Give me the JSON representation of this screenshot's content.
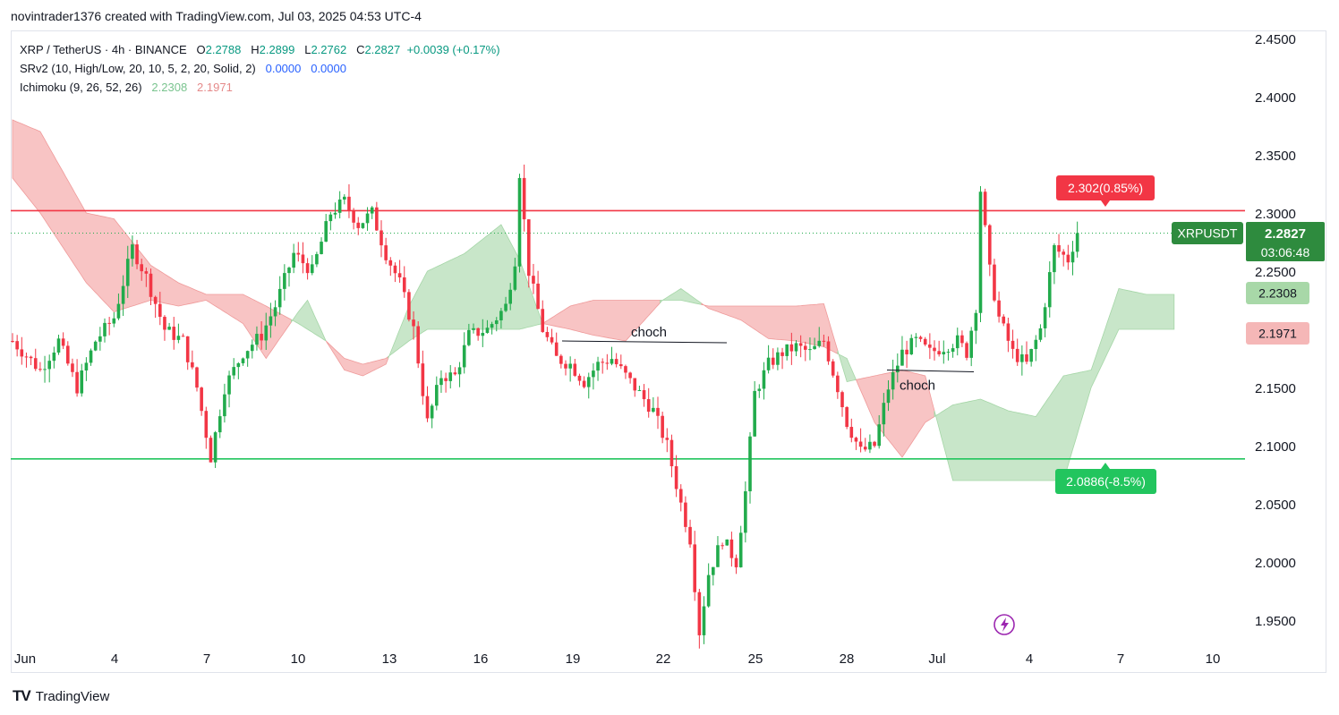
{
  "header": {
    "credit": "novintrader1376 created with TradingView.com, Jul 03, 2025 04:53 UTC-4"
  },
  "legend": {
    "symbol": "XRP / TetherUS · 4h · BINANCE",
    "o_label": "O",
    "o": "2.2788",
    "h_label": "H",
    "h": "2.2899",
    "l_label": "L",
    "l": "2.2762",
    "c_label": "C",
    "c": "2.2827",
    "change": "+0.0039 (+0.17%)",
    "srv2_label": "SRv2 (10, High/Low, 20, 10, 5, 2, 20, Solid, 2)",
    "srv2_v1": "0.0000",
    "srv2_v2": "0.0000",
    "ichimoku_label": "Ichimoku (9, 26, 52, 26)",
    "ichimoku_a": "2.2308",
    "ichimoku_b": "2.1971"
  },
  "colors": {
    "up": "#089981",
    "candle_up": "#22ab4c",
    "candle_down": "#f23645",
    "resistance": "#f23645",
    "support": "#22c55e",
    "cloud_green": "#c8e6c9",
    "cloud_red": "#f8c4c4"
  },
  "chart_data": {
    "type": "candlestick",
    "symbol": "XRPUSDT",
    "timeframe": "4h",
    "ylim": [
      1.93,
      2.465
    ],
    "y_ticks": [
      "2.4500",
      "2.4000",
      "2.3500",
      "2.3000",
      "2.2500",
      "2.1500",
      "2.1000",
      "2.0500",
      "2.0000",
      "1.9500"
    ],
    "x_ticks": [
      "Jun",
      "4",
      "7",
      "10",
      "13",
      "16",
      "19",
      "22",
      "25",
      "28",
      "Jul",
      "4",
      "7",
      "10"
    ],
    "last_price": 2.2827,
    "price_tag": {
      "symbol": "XRPUSDT",
      "price": "2.2827",
      "countdown": "03:06:48"
    },
    "ichimoku_tags": {
      "span_a": "2.2308",
      "span_b": "2.1971"
    },
    "levels": [
      {
        "name": "resistance",
        "price": 2.302,
        "label": "2.302(0.85%)"
      },
      {
        "name": "support",
        "price": 2.0886,
        "label": "2.0886(-8.5%)"
      }
    ],
    "annotations": [
      {
        "text": "choch",
        "price": 2.19
      },
      {
        "text": "choch",
        "price": 2.165
      }
    ],
    "path_points": [
      [
        0,
        2.19
      ],
      [
        6,
        2.165
      ],
      [
        10,
        2.19
      ],
      [
        14,
        2.15
      ],
      [
        18,
        2.19
      ],
      [
        22,
        2.21
      ],
      [
        26,
        2.27
      ],
      [
        29,
        2.245
      ],
      [
        33,
        2.2
      ],
      [
        37,
        2.19
      ],
      [
        40,
        2.15
      ],
      [
        43,
        2.09
      ],
      [
        46,
        2.15
      ],
      [
        50,
        2.18
      ],
      [
        54,
        2.195
      ],
      [
        57,
        2.22
      ],
      [
        61,
        2.265
      ],
      [
        65,
        2.25
      ],
      [
        69,
        2.3
      ],
      [
        72,
        2.31
      ],
      [
        75,
        2.29
      ],
      [
        78,
        2.3
      ],
      [
        81,
        2.265
      ],
      [
        84,
        2.24
      ],
      [
        87,
        2.2
      ],
      [
        90,
        2.12
      ],
      [
        93,
        2.16
      ],
      [
        96,
        2.16
      ],
      [
        99,
        2.195
      ],
      [
        103,
        2.2
      ],
      [
        107,
        2.22
      ],
      [
        109,
        2.26
      ],
      [
        110,
        2.335
      ],
      [
        112,
        2.25
      ],
      [
        115,
        2.2
      ],
      [
        118,
        2.175
      ],
      [
        121,
        2.17
      ],
      [
        124,
        2.155
      ],
      [
        127,
        2.17
      ],
      [
        130,
        2.175
      ],
      [
        133,
        2.16
      ],
      [
        136,
        2.145
      ],
      [
        139,
        2.13
      ],
      [
        142,
        2.1
      ],
      [
        145,
        2.05
      ],
      [
        147,
        2.02
      ],
      [
        149,
        1.94
      ],
      [
        151,
        1.99
      ],
      [
        154,
        2.02
      ],
      [
        157,
        2.0
      ],
      [
        159,
        2.06
      ],
      [
        161,
        2.145
      ],
      [
        164,
        2.17
      ],
      [
        167,
        2.18
      ],
      [
        170,
        2.185
      ],
      [
        173,
        2.18
      ],
      [
        176,
        2.19
      ],
      [
        179,
        2.15
      ],
      [
        181,
        2.12
      ],
      [
        184,
        2.095
      ],
      [
        187,
        2.1
      ],
      [
        190,
        2.15
      ],
      [
        193,
        2.18
      ],
      [
        196,
        2.19
      ],
      [
        199,
        2.18
      ],
      [
        202,
        2.185
      ],
      [
        205,
        2.19
      ],
      [
        207,
        2.18
      ],
      [
        209,
        2.22
      ],
      [
        210,
        2.32
      ],
      [
        212,
        2.25
      ],
      [
        214,
        2.21
      ],
      [
        217,
        2.18
      ],
      [
        220,
        2.17
      ],
      [
        223,
        2.2
      ],
      [
        226,
        2.27
      ],
      [
        229,
        2.26
      ],
      [
        231,
        2.283
      ]
    ],
    "span_a_points": [
      [
        0,
        2.33
      ],
      [
        6,
        2.3
      ],
      [
        16,
        2.24
      ],
      [
        22,
        2.215
      ],
      [
        30,
        2.225
      ],
      [
        36,
        2.22
      ],
      [
        42,
        2.225
      ],
      [
        50,
        2.205
      ],
      [
        55,
        2.175
      ],
      [
        62,
        2.215
      ],
      [
        64,
        2.225
      ],
      [
        68,
        2.19
      ],
      [
        72,
        2.165
      ],
      [
        76,
        2.16
      ],
      [
        81,
        2.17
      ],
      [
        86,
        2.22
      ],
      [
        90,
        2.25
      ],
      [
        98,
        2.265
      ],
      [
        106,
        2.29
      ],
      [
        110,
        2.26
      ],
      [
        115,
        2.205
      ],
      [
        121,
        2.2
      ],
      [
        126,
        2.195
      ],
      [
        133,
        2.19
      ],
      [
        141,
        2.225
      ],
      [
        145,
        2.235
      ],
      [
        151,
        2.218
      ],
      [
        158,
        2.208
      ],
      [
        164,
        2.192
      ],
      [
        170,
        2.19
      ],
      [
        176,
        2.185
      ],
      [
        181,
        2.175
      ],
      [
        187,
        2.12
      ],
      [
        193,
        2.09
      ],
      [
        198,
        2.12
      ],
      [
        204,
        2.135
      ],
      [
        210,
        2.14
      ],
      [
        216,
        2.13
      ],
      [
        222,
        2.125
      ],
      [
        228,
        2.16
      ],
      [
        234,
        2.165
      ],
      [
        240,
        2.235
      ],
      [
        246,
        2.23
      ],
      [
        252,
        2.23
      ]
    ],
    "span_b_points": [
      [
        0,
        2.38
      ],
      [
        6,
        2.37
      ],
      [
        16,
        2.3
      ],
      [
        22,
        2.295
      ],
      [
        30,
        2.255
      ],
      [
        36,
        2.24
      ],
      [
        42,
        2.23
      ],
      [
        50,
        2.23
      ],
      [
        55,
        2.22
      ],
      [
        62,
        2.205
      ],
      [
        64,
        2.2
      ],
      [
        68,
        2.19
      ],
      [
        72,
        2.175
      ],
      [
        76,
        2.17
      ],
      [
        81,
        2.175
      ],
      [
        86,
        2.19
      ],
      [
        90,
        2.2
      ],
      [
        98,
        2.2
      ],
      [
        106,
        2.2
      ],
      [
        110,
        2.2
      ],
      [
        115,
        2.205
      ],
      [
        121,
        2.22
      ],
      [
        126,
        2.225
      ],
      [
        133,
        2.225
      ],
      [
        141,
        2.225
      ],
      [
        145,
        2.225
      ],
      [
        151,
        2.22
      ],
      [
        158,
        2.22
      ],
      [
        164,
        2.22
      ],
      [
        170,
        2.22
      ],
      [
        176,
        2.222
      ],
      [
        181,
        2.155
      ],
      [
        187,
        2.16
      ],
      [
        193,
        2.165
      ],
      [
        198,
        2.16
      ],
      [
        204,
        2.07
      ],
      [
        210,
        2.07
      ],
      [
        216,
        2.07
      ],
      [
        222,
        2.07
      ],
      [
        228,
        2.07
      ],
      [
        234,
        2.15
      ],
      [
        240,
        2.2
      ],
      [
        246,
        2.2
      ],
      [
        252,
        2.2
      ]
    ]
  }
}
